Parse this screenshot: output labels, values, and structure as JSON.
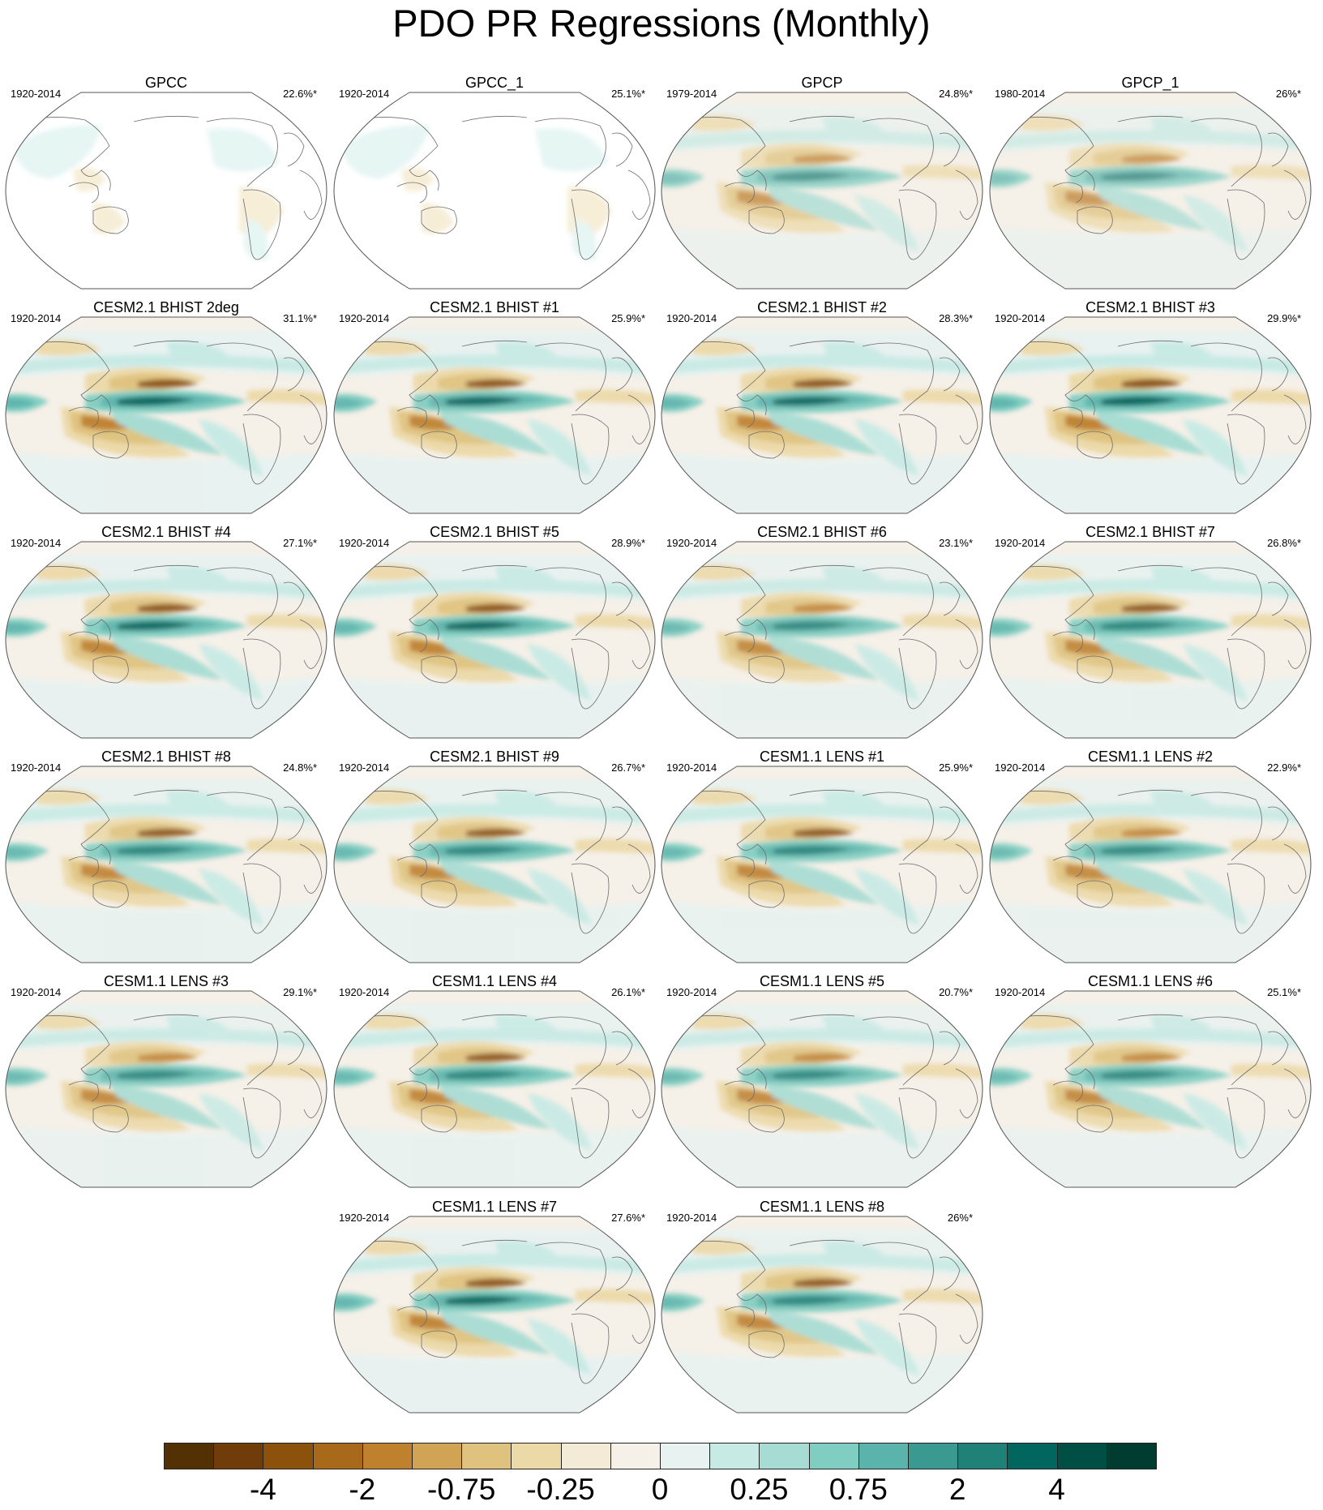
{
  "chart_data": {
    "type": "heatmap",
    "title": "PDO PR Regressions (Monthly)",
    "projection": "Robinson, Pacific-centered",
    "panels": [
      {
        "title": "GPCC",
        "period": "1920-2014",
        "percent": "22.6%*",
        "land_only": true,
        "pattern_strength": 0.15
      },
      {
        "title": "GPCC_1",
        "period": "1920-2014",
        "percent": "25.1%*",
        "land_only": true,
        "pattern_strength": 0.15
      },
      {
        "title": "GPCP",
        "period": "1979-2014",
        "percent": "24.8%*",
        "land_only": false,
        "pattern_strength": 0.6
      },
      {
        "title": "GPCP_1",
        "period": "1980-2014",
        "percent": "26%*",
        "land_only": false,
        "pattern_strength": 0.6
      },
      {
        "title": "CESM2.1 BHIST 2deg",
        "period": "1920-2014",
        "percent": "31.1%*",
        "land_only": false,
        "pattern_strength": 0.95
      },
      {
        "title": "CESM2.1 BHIST #1",
        "period": "1920-2014",
        "percent": "25.9%*",
        "land_only": false,
        "pattern_strength": 0.9
      },
      {
        "title": "CESM2.1 BHIST #2",
        "period": "1920-2014",
        "percent": "28.3%*",
        "land_only": false,
        "pattern_strength": 0.9
      },
      {
        "title": "CESM2.1 BHIST #3",
        "period": "1920-2014",
        "percent": "29.9%*",
        "land_only": false,
        "pattern_strength": 0.95
      },
      {
        "title": "CESM2.1 BHIST #4",
        "period": "1920-2014",
        "percent": "27.1%*",
        "land_only": false,
        "pattern_strength": 0.9
      },
      {
        "title": "CESM2.1 BHIST #5",
        "period": "1920-2014",
        "percent": "28.9%*",
        "land_only": false,
        "pattern_strength": 0.9
      },
      {
        "title": "CESM2.1 BHIST #6",
        "period": "1920-2014",
        "percent": "23.1%*",
        "land_only": false,
        "pattern_strength": 0.8
      },
      {
        "title": "CESM2.1 BHIST #7",
        "period": "1920-2014",
        "percent": "26.8%*",
        "land_only": false,
        "pattern_strength": 0.85
      },
      {
        "title": "CESM2.1 BHIST #8",
        "period": "1920-2014",
        "percent": "24.8%*",
        "land_only": false,
        "pattern_strength": 0.85
      },
      {
        "title": "CESM2.1 BHIST #9",
        "period": "1920-2014",
        "percent": "26.7%*",
        "land_only": false,
        "pattern_strength": 0.85
      },
      {
        "title": "CESM1.1 LENS #1",
        "period": "1920-2014",
        "percent": "25.9%*",
        "land_only": false,
        "pattern_strength": 0.85
      },
      {
        "title": "CESM1.1 LENS #2",
        "period": "1920-2014",
        "percent": "22.9%*",
        "land_only": false,
        "pattern_strength": 0.8
      },
      {
        "title": "CESM1.1 LENS #3",
        "period": "1920-2014",
        "percent": "29.1%*",
        "land_only": false,
        "pattern_strength": 0.8
      },
      {
        "title": "CESM1.1 LENS #4",
        "period": "1920-2014",
        "percent": "26.1%*",
        "land_only": false,
        "pattern_strength": 0.85
      },
      {
        "title": "CESM1.1 LENS #5",
        "period": "1920-2014",
        "percent": "20.7%*",
        "land_only": false,
        "pattern_strength": 0.8
      },
      {
        "title": "CESM1.1 LENS #6",
        "period": "1920-2014",
        "percent": "25.1%*",
        "land_only": false,
        "pattern_strength": 0.8
      },
      {
        "title": "CESM1.1 LENS #7",
        "period": "1920-2014",
        "percent": "27.6%*",
        "land_only": false,
        "pattern_strength": 0.9
      },
      {
        "title": "CESM1.1 LENS #8",
        "period": "1920-2014",
        "percent": "26%*",
        "land_only": false,
        "pattern_strength": 0.85
      }
    ],
    "colorbar": {
      "colors": [
        "#543005",
        "#6f3c0a",
        "#8c510a",
        "#a8691a",
        "#bf812d",
        "#d1a455",
        "#dfc27d",
        "#ecd9a8",
        "#f3ebd6",
        "#f5f0e8",
        "#e8f2f0",
        "#c7eae5",
        "#a6dcd3",
        "#80cdc1",
        "#5ab4ac",
        "#3a9a92",
        "#1f8178",
        "#01665e",
        "#004f45",
        "#003c30"
      ],
      "tick_labels": [
        "-4",
        "-2",
        "-0.75",
        "-0.25",
        "0",
        "0.25",
        "0.75",
        "2",
        "4"
      ],
      "tick_boundaries": [
        2,
        4,
        6,
        8,
        10,
        12,
        14,
        16,
        18
      ]
    }
  }
}
